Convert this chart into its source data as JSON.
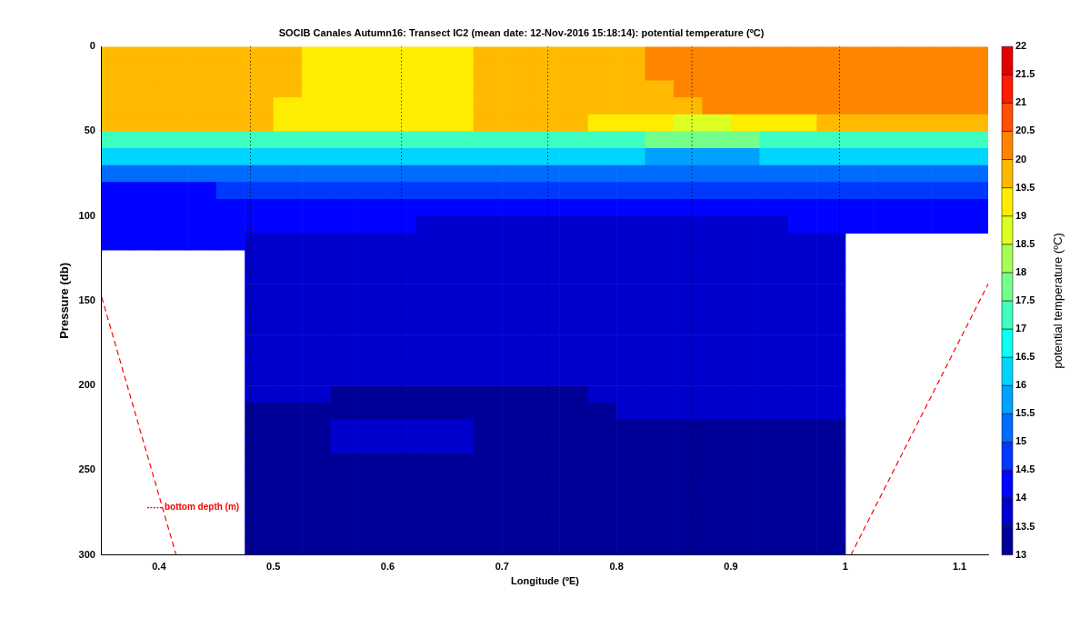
{
  "chart_data": {
    "type": "heatmap",
    "title": "SOCIB Canales Autumn16: Transect IC2 (mean date: 12-Nov-2016 15:18:14): potential temperature (ºC)",
    "xlabel": "Longitude (ºE)",
    "ylabel": "Pressure (db)",
    "clabel": "potential temperature (ºC)",
    "xlim": [
      0.35,
      1.125
    ],
    "xticks": [
      0.4,
      0.5,
      0.6,
      0.7,
      0.8,
      0.9,
      1,
      1.1
    ],
    "ylim": [
      300,
      0
    ],
    "yticks": [
      0,
      50,
      100,
      150,
      200,
      250,
      300
    ],
    "clim": [
      13,
      22
    ],
    "cticks": [
      13,
      13.5,
      14,
      14.5,
      15,
      15.5,
      16,
      16.5,
      17,
      17.5,
      18,
      18.5,
      19,
      19.5,
      20,
      20.5,
      21,
      21.5,
      22
    ],
    "grid": false,
    "legend": "bottom left",
    "x": [
      0.3625,
      0.3875,
      0.4125,
      0.4375,
      0.4625,
      0.4875,
      0.5125,
      0.5375,
      0.5625,
      0.5875,
      0.6125,
      0.6375,
      0.6625,
      0.6875,
      0.7125,
      0.7375,
      0.7625,
      0.7875,
      0.8125,
      0.8375,
      0.8625,
      0.8875,
      0.9125,
      0.9375,
      0.9625,
      0.9875,
      1.0125,
      1.0375,
      1.0625,
      1.0875,
      1.1125
    ],
    "y": [
      5,
      15,
      25,
      35,
      45,
      55,
      65,
      75,
      85,
      95,
      105,
      115,
      125,
      135,
      145,
      155,
      165,
      175,
      185,
      195,
      205,
      215,
      225,
      235,
      245,
      255,
      265,
      275,
      285,
      295
    ],
    "cells": [
      [
        19.7,
        19.7,
        19.7,
        19.7,
        19.7,
        19.7,
        19.7,
        19.2,
        19.2,
        19.2,
        19.2,
        19.2,
        19.2,
        19.7,
        19.7,
        19.7,
        19.7,
        19.7,
        19.7,
        20.2,
        20.2,
        20.2,
        20.2,
        20.2,
        20.2,
        20.2,
        20.2,
        20.2,
        20.2,
        20.2,
        20.2
      ],
      [
        19.7,
        19.7,
        19.7,
        19.7,
        19.7,
        19.7,
        19.7,
        19.2,
        19.2,
        19.2,
        19.2,
        19.2,
        19.2,
        19.7,
        19.7,
        19.7,
        19.7,
        19.7,
        19.7,
        20.2,
        20.2,
        20.2,
        20.2,
        20.2,
        20.2,
        20.2,
        20.2,
        20.2,
        20.2,
        20.2,
        20.2
      ],
      [
        19.7,
        19.7,
        19.7,
        19.7,
        19.7,
        19.7,
        19.7,
        19.2,
        19.2,
        19.2,
        19.2,
        19.2,
        19.2,
        19.7,
        19.7,
        19.7,
        19.7,
        19.7,
        19.7,
        19.7,
        20.2,
        20.2,
        20.2,
        20.2,
        20.2,
        20.2,
        20.2,
        20.2,
        20.2,
        20.2,
        20.2
      ],
      [
        19.7,
        19.7,
        19.7,
        19.7,
        19.7,
        19.7,
        19.2,
        19.2,
        19.2,
        19.2,
        19.2,
        19.2,
        19.2,
        19.7,
        19.7,
        19.7,
        19.7,
        19.7,
        19.7,
        19.7,
        19.7,
        20.2,
        20.2,
        20.2,
        20.2,
        20.2,
        20.2,
        20.2,
        20.2,
        20.2,
        20.2
      ],
      [
        19.6,
        19.6,
        19.6,
        19.6,
        19.6,
        19.6,
        19.2,
        19.2,
        19.2,
        19.2,
        19.2,
        19.2,
        19.2,
        19.6,
        19.6,
        19.6,
        19.6,
        19.2,
        19.2,
        19.2,
        18.7,
        18.7,
        19.2,
        19.2,
        19.2,
        19.7,
        19.7,
        19.7,
        19.7,
        19.7,
        19.7
      ],
      [
        17.2,
        17.2,
        17.2,
        17.2,
        17.2,
        17.2,
        17.2,
        17.2,
        17.2,
        17.2,
        17.2,
        17.2,
        17.2,
        17.2,
        17.2,
        17.2,
        17.2,
        17.2,
        17.2,
        17.7,
        17.7,
        17.7,
        17.7,
        17.2,
        17.2,
        17.2,
        17.2,
        17.2,
        17.2,
        17.2,
        17.2
      ],
      [
        16.2,
        16.2,
        16.2,
        16.2,
        16.2,
        16.2,
        16.2,
        16.2,
        16.2,
        16.2,
        16.2,
        16.2,
        16.2,
        16.2,
        16.2,
        16.2,
        16.2,
        16.2,
        16.2,
        15.8,
        15.8,
        15.8,
        15.8,
        16.2,
        16.2,
        16.2,
        16.2,
        16.2,
        16.2,
        16.2,
        16.2
      ],
      [
        15.1,
        15.1,
        15.1,
        15.1,
        15.1,
        15.3,
        15.3,
        15.3,
        15.3,
        15.3,
        15.3,
        15.3,
        15.3,
        15.3,
        15.3,
        15.3,
        15.3,
        15.3,
        15.3,
        15.3,
        15.3,
        15.3,
        15.3,
        15.3,
        15.3,
        15.3,
        15.3,
        15.3,
        15.3,
        15.3,
        15.3
      ],
      [
        14.4,
        14.4,
        14.4,
        14.4,
        14.7,
        14.7,
        14.7,
        14.7,
        14.7,
        14.7,
        14.7,
        14.7,
        14.7,
        14.7,
        14.7,
        14.7,
        14.7,
        14.7,
        14.7,
        14.7,
        14.7,
        14.7,
        14.7,
        14.7,
        14.7,
        14.7,
        14.7,
        14.7,
        14.7,
        14.7,
        14.7
      ],
      [
        14.1,
        14.1,
        14.1,
        14.1,
        14.3,
        14.3,
        14.3,
        14.3,
        14.3,
        14.3,
        14.3,
        14.3,
        14.3,
        14.3,
        14.3,
        14.3,
        14.3,
        14.3,
        14.3,
        14.3,
        14.3,
        14.3,
        14.3,
        14.3,
        14.3,
        14.3,
        14.3,
        14.3,
        14.3,
        14.3,
        14.3
      ],
      [
        14.2,
        14.2,
        14.2,
        14.2,
        14.2,
        14.2,
        14.2,
        14.2,
        14.2,
        14.2,
        14.2,
        13.8,
        13.8,
        13.8,
        13.8,
        13.8,
        13.8,
        13.8,
        13.8,
        13.8,
        13.8,
        13.8,
        13.8,
        13.8,
        14.2,
        14.2,
        14.2,
        14.2,
        14.2,
        14.2,
        14.2
      ],
      [
        14.1,
        14.1,
        14.1,
        14.1,
        14.1,
        13.8,
        13.8,
        13.8,
        13.8,
        13.8,
        13.8,
        13.8,
        13.8,
        13.8,
        13.8,
        13.8,
        13.8,
        13.8,
        13.8,
        13.8,
        13.8,
        13.8,
        13.8,
        13.8,
        13.8,
        13.8,
        null,
        null,
        null,
        null,
        null
      ],
      [
        null,
        null,
        null,
        null,
        null,
        13.7,
        13.7,
        13.7,
        13.7,
        13.7,
        13.7,
        13.7,
        13.7,
        13.7,
        13.7,
        13.7,
        13.7,
        13.7,
        13.7,
        13.7,
        13.7,
        13.7,
        13.7,
        13.7,
        13.7,
        13.7,
        null,
        null,
        null,
        null,
        null
      ],
      [
        null,
        null,
        null,
        null,
        null,
        13.7,
        13.7,
        13.7,
        13.7,
        13.7,
        13.7,
        13.7,
        13.7,
        13.7,
        13.7,
        13.7,
        13.7,
        13.7,
        13.7,
        13.7,
        13.7,
        13.7,
        13.7,
        13.7,
        13.7,
        13.7,
        null,
        null,
        null,
        null,
        null
      ],
      [
        null,
        null,
        null,
        null,
        null,
        13.7,
        13.7,
        13.7,
        13.7,
        13.7,
        13.7,
        13.7,
        13.7,
        13.7,
        13.7,
        13.7,
        13.7,
        13.7,
        13.7,
        13.7,
        13.7,
        13.7,
        13.7,
        13.7,
        13.7,
        13.7,
        null,
        null,
        null,
        null,
        null
      ],
      [
        null,
        null,
        null,
        null,
        null,
        13.7,
        13.7,
        13.7,
        13.7,
        13.7,
        13.7,
        13.7,
        13.7,
        13.7,
        13.7,
        13.7,
        13.7,
        13.7,
        13.7,
        13.7,
        13.7,
        13.7,
        13.7,
        13.7,
        13.7,
        13.7,
        null,
        null,
        null,
        null,
        null
      ],
      [
        null,
        null,
        null,
        null,
        null,
        13.7,
        13.7,
        13.7,
        13.7,
        13.7,
        13.7,
        13.7,
        13.7,
        13.7,
        13.7,
        13.7,
        13.7,
        13.7,
        13.7,
        13.7,
        13.7,
        13.7,
        13.7,
        13.7,
        13.7,
        13.7,
        null,
        null,
        null,
        null,
        null
      ],
      [
        null,
        null,
        null,
        null,
        null,
        13.7,
        13.7,
        13.7,
        13.7,
        13.7,
        13.7,
        13.7,
        13.7,
        13.7,
        13.7,
        13.7,
        13.7,
        13.7,
        13.7,
        13.7,
        13.7,
        13.7,
        13.7,
        13.7,
        13.7,
        13.7,
        null,
        null,
        null,
        null,
        null
      ],
      [
        null,
        null,
        null,
        null,
        null,
        13.7,
        13.7,
        13.7,
        13.7,
        13.7,
        13.7,
        13.7,
        13.7,
        13.7,
        13.7,
        13.7,
        13.7,
        13.7,
        13.7,
        13.7,
        13.7,
        13.7,
        13.7,
        13.7,
        13.7,
        13.7,
        null,
        null,
        null,
        null,
        null
      ],
      [
        null,
        null,
        null,
        null,
        null,
        13.7,
        13.7,
        13.7,
        13.7,
        13.7,
        13.7,
        13.7,
        13.7,
        13.7,
        13.7,
        13.7,
        13.7,
        13.7,
        13.7,
        13.7,
        13.7,
        13.7,
        13.7,
        13.7,
        13.7,
        13.7,
        null,
        null,
        null,
        null,
        null
      ],
      [
        null,
        null,
        null,
        null,
        null,
        13.7,
        13.7,
        13.7,
        13.3,
        13.3,
        13.3,
        13.3,
        13.3,
        13.3,
        13.3,
        13.3,
        13.3,
        13.7,
        13.7,
        13.7,
        13.7,
        13.7,
        13.7,
        13.7,
        13.7,
        13.7,
        null,
        null,
        null,
        null,
        null
      ],
      [
        null,
        null,
        null,
        null,
        null,
        13.3,
        13.3,
        13.3,
        13.3,
        13.3,
        13.3,
        13.3,
        13.3,
        13.3,
        13.3,
        13.3,
        13.3,
        13.3,
        13.6,
        13.6,
        13.6,
        13.6,
        13.6,
        13.6,
        13.6,
        13.6,
        null,
        null,
        null,
        null,
        null
      ],
      [
        null,
        null,
        null,
        null,
        null,
        13.3,
        13.3,
        13.3,
        13.6,
        13.6,
        13.6,
        13.6,
        13.6,
        13.3,
        13.3,
        13.3,
        13.3,
        13.3,
        13.3,
        13.3,
        13.3,
        13.3,
        13.3,
        13.3,
        13.3,
        13.3,
        null,
        null,
        null,
        null,
        null
      ],
      [
        null,
        null,
        null,
        null,
        null,
        13.3,
        13.3,
        13.3,
        13.6,
        13.6,
        13.6,
        13.6,
        13.6,
        13.3,
        13.3,
        13.3,
        13.3,
        13.3,
        13.3,
        13.3,
        13.3,
        13.3,
        13.3,
        13.3,
        13.3,
        13.3,
        null,
        null,
        null,
        null,
        null
      ],
      [
        null,
        null,
        null,
        null,
        null,
        13.3,
        13.3,
        13.3,
        13.3,
        13.3,
        13.3,
        13.3,
        13.3,
        13.3,
        13.3,
        13.3,
        13.3,
        13.3,
        13.3,
        13.3,
        13.3,
        13.3,
        13.3,
        13.3,
        13.3,
        13.3,
        null,
        null,
        null,
        null,
        null
      ],
      [
        null,
        null,
        null,
        null,
        null,
        13.3,
        13.3,
        13.3,
        13.3,
        13.3,
        13.3,
        13.3,
        13.3,
        13.3,
        13.3,
        13.3,
        13.3,
        13.3,
        13.3,
        13.3,
        13.3,
        13.3,
        13.3,
        13.3,
        13.3,
        13.3,
        null,
        null,
        null,
        null,
        null
      ],
      [
        null,
        null,
        null,
        null,
        null,
        13.3,
        13.3,
        13.3,
        13.3,
        13.3,
        13.3,
        13.3,
        13.3,
        13.3,
        13.3,
        13.3,
        13.3,
        13.3,
        13.3,
        13.3,
        13.3,
        13.3,
        13.3,
        13.3,
        13.3,
        13.3,
        null,
        null,
        null,
        null,
        null
      ],
      [
        null,
        null,
        null,
        null,
        null,
        13.3,
        13.3,
        13.3,
        13.3,
        13.3,
        13.3,
        13.3,
        13.3,
        13.3,
        13.3,
        13.3,
        13.3,
        13.3,
        13.3,
        13.3,
        13.3,
        13.3,
        13.3,
        13.3,
        13.3,
        13.3,
        null,
        null,
        null,
        null,
        null
      ],
      [
        null,
        null,
        null,
        null,
        null,
        13.3,
        13.3,
        13.3,
        13.3,
        13.3,
        13.3,
        13.3,
        13.3,
        13.3,
        13.3,
        13.3,
        13.3,
        13.3,
        13.3,
        13.3,
        13.3,
        13.3,
        13.3,
        13.3,
        13.3,
        13.3,
        null,
        null,
        null,
        null,
        null
      ],
      [
        null,
        null,
        null,
        null,
        null,
        13.3,
        13.3,
        13.3,
        13.3,
        13.3,
        13.3,
        13.3,
        13.3,
        13.3,
        13.3,
        13.3,
        13.3,
        13.3,
        13.3,
        13.3,
        13.3,
        13.3,
        13.3,
        13.3,
        13.3,
        13.3,
        null,
        null,
        null,
        null,
        null
      ]
    ],
    "ref_lines": [
      {
        "axis": "x",
        "value": 0.48,
        "color": "#000000",
        "line_style": "dotted"
      },
      {
        "axis": "x",
        "value": 0.612,
        "color": "#000000",
        "line_style": "dotted"
      },
      {
        "axis": "x",
        "value": 0.74,
        "color": "#000000",
        "line_style": "dotted"
      },
      {
        "axis": "x",
        "value": 0.866,
        "color": "#000000",
        "line_style": "dotted"
      },
      {
        "axis": "x",
        "value": 0.995,
        "color": "#000000",
        "line_style": "dotted"
      }
    ],
    "series": [
      {
        "type": "line",
        "name": "bottom depth (m)",
        "color": "#ff0000",
        "line_style": "dashed",
        "marker": "none",
        "x": [
          0.35,
          0.415,
          0.7,
          1.005,
          1.125
        ],
        "values": [
          148,
          300,
          null,
          300,
          140
        ]
      }
    ]
  }
}
